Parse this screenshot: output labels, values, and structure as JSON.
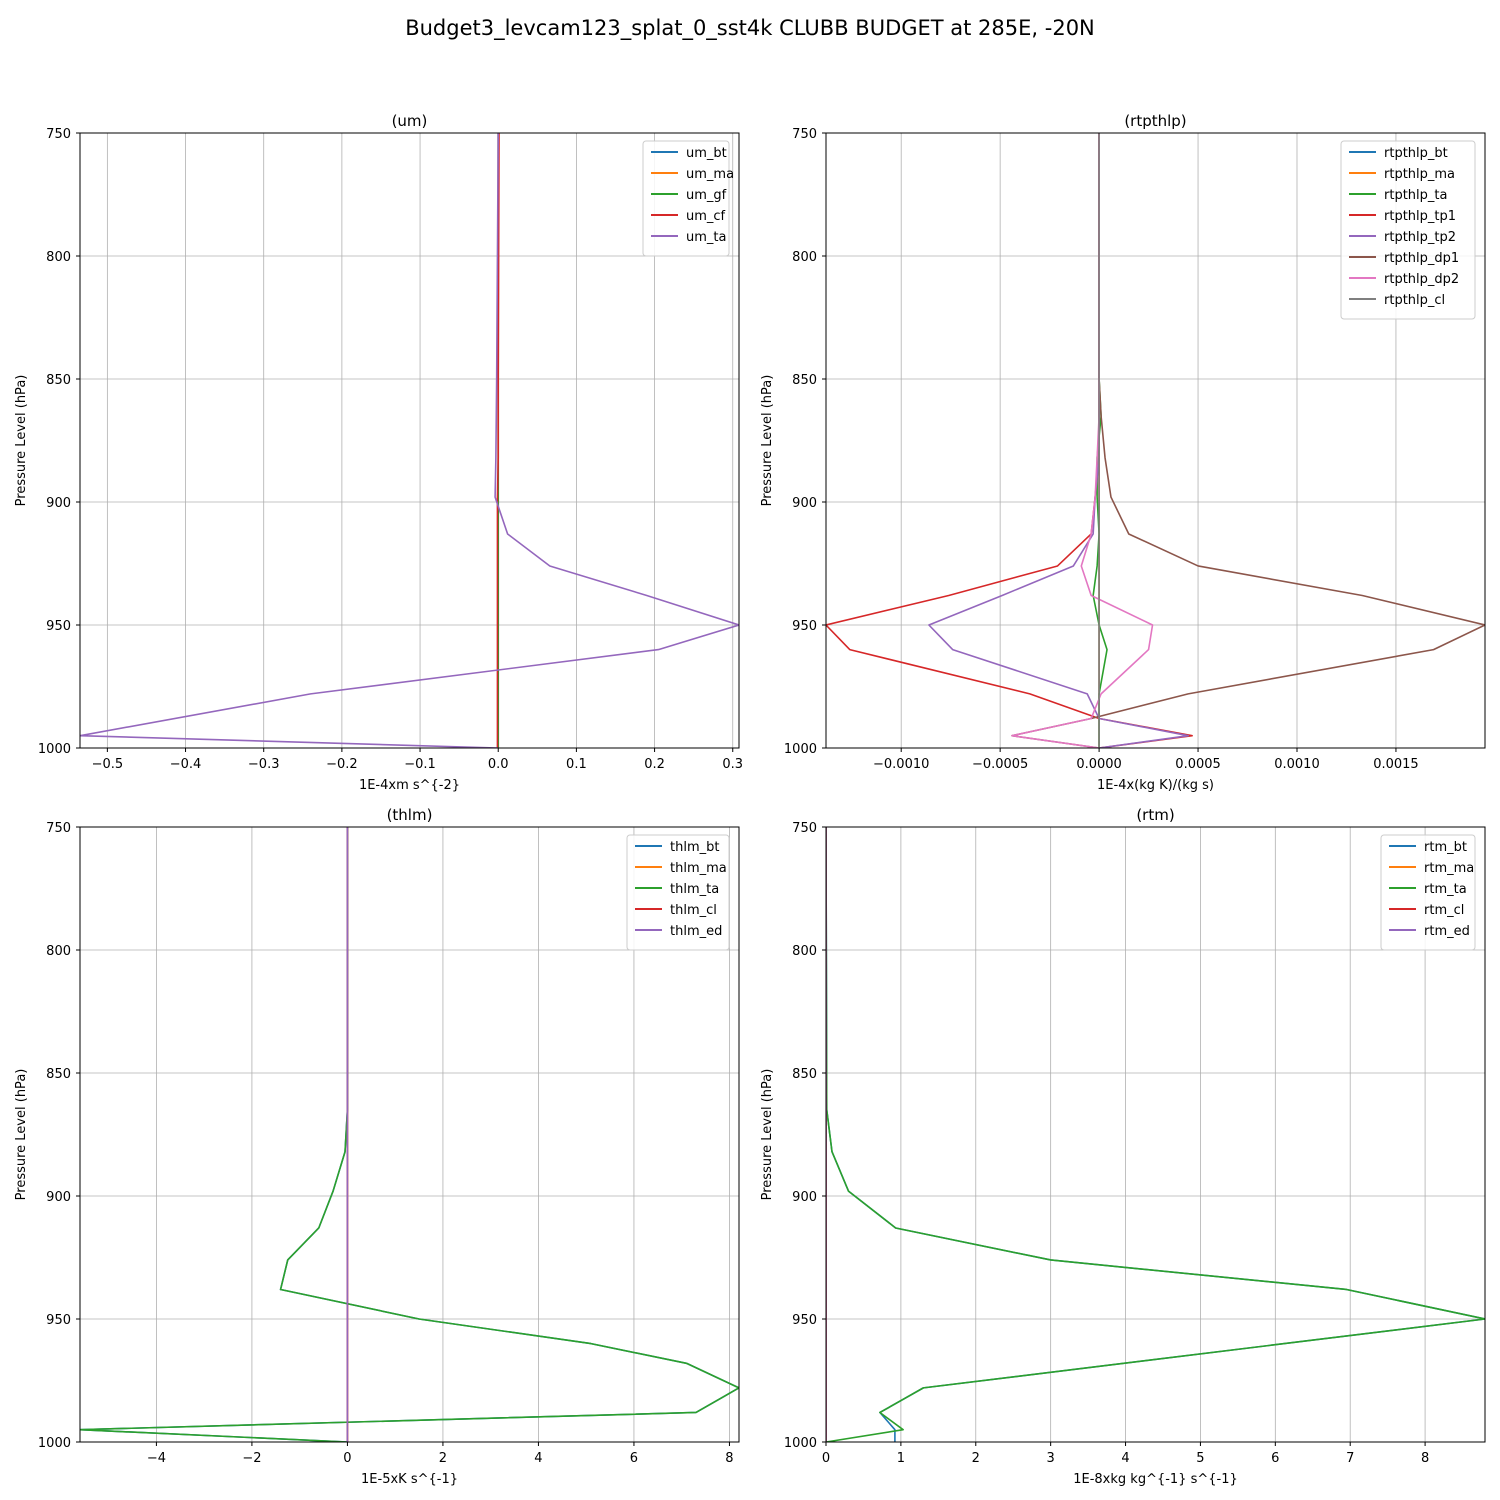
{
  "figure": {
    "title": "Budget3_levcam123_splat_0_sst4k CLUBB BUDGET at 285E, -20N"
  },
  "chart_data": [
    {
      "type": "line",
      "title": "(um)",
      "xlabel": "1E-4xm s^{-2}",
      "ylabel": "Pressure Level (hPa)",
      "xlim": [
        -0.535,
        0.308
      ],
      "ylim": [
        1000,
        750
      ],
      "y_inverted": true,
      "grid": true,
      "legend_position": "top-right",
      "x_ticks": [
        -0.5,
        -0.4,
        -0.3,
        -0.2,
        -0.1,
        0.0,
        0.1,
        0.2,
        0.3
      ],
      "x_tick_labels": [
        "−0.5",
        "−0.4",
        "−0.3",
        "−0.2",
        "−0.1",
        "0.0",
        "0.1",
        "0.2",
        "0.3"
      ],
      "y_ticks": [
        750,
        800,
        850,
        900,
        950,
        1000
      ],
      "y_tick_labels": [
        "750",
        "800",
        "850",
        "900",
        "950",
        "1000"
      ],
      "series": [
        {
          "name": "um_bt",
          "color": "#1f77b4",
          "x": [
            0,
            0,
            0,
            0,
            0,
            0,
            0,
            0,
            0,
            0,
            0,
            0
          ],
          "y": [
            750,
            850,
            882,
            898,
            913,
            926,
            938,
            950,
            960,
            978,
            995,
            1000
          ]
        },
        {
          "name": "um_ma",
          "color": "#ff7f0e",
          "x": [
            0,
            0,
            0,
            0,
            0,
            0,
            0,
            0,
            0,
            0,
            0,
            0
          ],
          "y": [
            750,
            850,
            882,
            898,
            913,
            926,
            938,
            950,
            960,
            978,
            995,
            1000
          ]
        },
        {
          "name": "um_gf",
          "color": "#2ca02c",
          "x": [
            0,
            0,
            0,
            0,
            0,
            0,
            0,
            0,
            0,
            0,
            0,
            0
          ],
          "y": [
            750,
            850,
            882,
            898,
            913,
            926,
            938,
            950,
            960,
            978,
            995,
            1000
          ]
        },
        {
          "name": "um_cf",
          "color": "#d62728",
          "x": [
            0.001,
            0.0,
            0.0,
            -0.001,
            -0.001,
            -0.001,
            -0.001,
            -0.001,
            -0.001,
            -0.001,
            -0.001,
            -0.001
          ],
          "y": [
            750,
            850,
            882,
            898,
            913,
            926,
            938,
            950,
            960,
            978,
            995,
            1000
          ]
        },
        {
          "name": "um_ta",
          "color": "#9467bd",
          "x": [
            0.0,
            -0.002,
            -0.003,
            -0.004,
            0.012,
            0.066,
            0.19,
            0.308,
            0.205,
            -0.24,
            -0.535,
            0.0
          ],
          "y": [
            750,
            850,
            882,
            898,
            913,
            926,
            938,
            950,
            960,
            978,
            995,
            1000
          ]
        }
      ]
    },
    {
      "type": "line",
      "title": "(rtpthlp)",
      "xlabel": "1E-4x(kg K)/(kg s)",
      "ylabel": "Pressure Level (hPa)",
      "xlim": [
        -0.00138,
        0.00195
      ],
      "ylim": [
        1000,
        750
      ],
      "y_inverted": true,
      "grid": true,
      "legend_position": "top-right",
      "x_ticks": [
        -0.001,
        -0.0005,
        0.0,
        0.0005,
        0.001,
        0.0015
      ],
      "x_tick_labels": [
        "−0.0010",
        "−0.0005",
        "0.0000",
        "0.0005",
        "0.0010",
        "0.0015"
      ],
      "y_ticks": [
        750,
        800,
        850,
        900,
        950,
        1000
      ],
      "y_tick_labels": [
        "750",
        "800",
        "850",
        "900",
        "950",
        "1000"
      ],
      "series": [
        {
          "name": "rtpthlp_bt",
          "color": "#1f77b4",
          "x": [
            0,
            0,
            0,
            0,
            0,
            0,
            0,
            0,
            0,
            0,
            0,
            0,
            0,
            0
          ],
          "y": [
            750,
            850,
            865,
            882,
            898,
            913,
            926,
            938,
            950,
            960,
            978,
            988,
            995,
            1000
          ]
        },
        {
          "name": "rtpthlp_ma",
          "color": "#ff7f0e",
          "x": [
            0,
            0,
            0,
            0,
            0,
            0,
            0,
            0,
            0,
            0,
            0,
            0,
            0,
            0
          ],
          "y": [
            750,
            850,
            865,
            882,
            898,
            913,
            926,
            938,
            950,
            960,
            978,
            988,
            995,
            1000
          ]
        },
        {
          "name": "rtpthlp_ta",
          "color": "#2ca02c",
          "x": [
            0,
            0,
            1e-05,
            -1e-05,
            -1e-05,
            0.0,
            -1e-05,
            -3e-05,
            0.0,
            4e-05,
            0.0,
            0.0,
            0.0,
            0.0
          ],
          "y": [
            750,
            850,
            865,
            882,
            898,
            913,
            926,
            938,
            950,
            960,
            978,
            988,
            995,
            1000
          ]
        },
        {
          "name": "rtpthlp_tp1",
          "color": "#d62728",
          "x": [
            0,
            0,
            0.0,
            0.0,
            -2e-05,
            -4e-05,
            -0.00021,
            -0.00076,
            -0.00138,
            -0.00126,
            -0.00035,
            0.0,
            0.00047,
            0.0
          ],
          "y": [
            750,
            850,
            865,
            882,
            898,
            913,
            926,
            938,
            950,
            960,
            978,
            988,
            995,
            1000
          ]
        },
        {
          "name": "rtpthlp_tp2",
          "color": "#9467bd",
          "x": [
            0,
            0,
            0.0,
            0.0,
            -2e-05,
            -3e-05,
            -0.00013,
            -0.00049,
            -0.00086,
            -0.00074,
            -6e-05,
            0.0,
            0.00045,
            0.0
          ],
          "y": [
            750,
            850,
            865,
            882,
            898,
            913,
            926,
            938,
            950,
            960,
            978,
            988,
            995,
            1000
          ]
        },
        {
          "name": "rtpthlp_dp1",
          "color": "#8c564b",
          "x": [
            0,
            0,
            1e-05,
            3e-05,
            6e-05,
            0.00015,
            0.0005,
            0.00133,
            0.00195,
            0.00169,
            0.00045,
            -4e-05,
            -0.00044,
            0.0
          ],
          "y": [
            750,
            850,
            865,
            882,
            898,
            913,
            926,
            938,
            950,
            960,
            978,
            988,
            995,
            1000
          ]
        },
        {
          "name": "rtpthlp_dp2",
          "color": "#e377c2",
          "x": [
            0,
            0,
            0.0,
            -1e-05,
            -2e-05,
            -4e-05,
            -9e-05,
            -4e-05,
            0.00027,
            0.00025,
            1e-05,
            -4e-05,
            -0.00044,
            0.0
          ],
          "y": [
            750,
            850,
            865,
            882,
            898,
            913,
            926,
            938,
            950,
            960,
            978,
            988,
            995,
            1000
          ]
        },
        {
          "name": "rtpthlp_cl",
          "color": "#7f7f7f",
          "x": [
            0,
            0,
            0,
            0,
            0,
            0,
            0,
            0,
            0,
            0,
            0,
            0,
            0,
            0
          ],
          "y": [
            750,
            850,
            865,
            882,
            898,
            913,
            926,
            938,
            950,
            960,
            978,
            988,
            995,
            1000
          ]
        }
      ]
    },
    {
      "type": "line",
      "title": "(thlm)",
      "xlabel": "1E-5xK s^{-1}",
      "ylabel": "Pressure Level (hPa)",
      "xlim": [
        -5.6,
        8.2
      ],
      "ylim": [
        1000,
        750
      ],
      "y_inverted": true,
      "grid": true,
      "legend_position": "top-right",
      "x_ticks": [
        -4,
        -2,
        0,
        2,
        4,
        6,
        8
      ],
      "x_tick_labels": [
        "−4",
        "−2",
        "0",
        "2",
        "4",
        "6",
        "8"
      ],
      "y_ticks": [
        750,
        800,
        850,
        900,
        950,
        1000
      ],
      "y_tick_labels": [
        "750",
        "800",
        "850",
        "900",
        "950",
        "1000"
      ],
      "series": [
        {
          "name": "thlm_bt",
          "color": "#1f77b4",
          "x": [
            0,
            0,
            -0.05,
            -0.3,
            -0.6,
            -1.25,
            -1.4,
            1.5,
            5.1,
            7.1,
            8.2,
            7.3,
            -5.6,
            0.0
          ],
          "y": [
            750,
            865,
            882,
            898,
            913,
            926,
            938,
            950,
            960,
            968,
            978,
            988,
            995,
            1000
          ]
        },
        {
          "name": "thlm_ma",
          "color": "#ff7f0e",
          "x": [
            0,
            0,
            0,
            0,
            0,
            0,
            0,
            0,
            0,
            0,
            0,
            0,
            0,
            0
          ],
          "y": [
            750,
            865,
            882,
            898,
            913,
            926,
            938,
            950,
            960,
            968,
            978,
            988,
            995,
            1000
          ]
        },
        {
          "name": "thlm_ta",
          "color": "#2ca02c",
          "x": [
            0,
            0,
            -0.05,
            -0.3,
            -0.6,
            -1.25,
            -1.4,
            1.5,
            5.1,
            7.1,
            8.2,
            7.3,
            -5.6,
            0.0
          ],
          "y": [
            750,
            865,
            882,
            898,
            913,
            926,
            938,
            950,
            960,
            968,
            978,
            988,
            995,
            1000
          ]
        },
        {
          "name": "thlm_cl",
          "color": "#d62728",
          "x": [
            0,
            0,
            0,
            0,
            0,
            0,
            0,
            0,
            0,
            0,
            0,
            0,
            0,
            0
          ],
          "y": [
            750,
            865,
            882,
            898,
            913,
            926,
            938,
            950,
            960,
            968,
            978,
            988,
            995,
            1000
          ]
        },
        {
          "name": "thlm_ed",
          "color": "#9467bd",
          "x": [
            0,
            0,
            0,
            0,
            0,
            0,
            0,
            0,
            0,
            0,
            0,
            0,
            0,
            0
          ],
          "y": [
            750,
            865,
            882,
            898,
            913,
            926,
            938,
            950,
            960,
            968,
            978,
            988,
            995,
            1000
          ]
        }
      ]
    },
    {
      "type": "line",
      "title": "(rtm)",
      "xlabel": "1E-8xkg kg^{-1} s^{-1}",
      "ylabel": "Pressure Level (hPa)",
      "xlim": [
        0,
        8.8
      ],
      "ylim": [
        1000,
        750
      ],
      "y_inverted": true,
      "grid": true,
      "legend_position": "top-right",
      "x_ticks": [
        0,
        1,
        2,
        3,
        4,
        5,
        6,
        7,
        8
      ],
      "x_tick_labels": [
        "0",
        "1",
        "2",
        "3",
        "4",
        "5",
        "6",
        "7",
        "8"
      ],
      "y_ticks": [
        750,
        800,
        850,
        900,
        950,
        1000
      ],
      "y_tick_labels": [
        "750",
        "800",
        "850",
        "900",
        "950",
        "1000"
      ],
      "series": [
        {
          "name": "rtm_bt",
          "color": "#1f77b4",
          "x": [
            0,
            0.01,
            0.08,
            0.3,
            0.93,
            3.0,
            6.95,
            8.8,
            1.3,
            0.72,
            0.92,
            0.92
          ],
          "y": [
            750,
            865,
            882,
            898,
            913,
            926,
            938,
            950,
            978,
            988,
            995,
            1000
          ]
        },
        {
          "name": "rtm_ma",
          "color": "#ff7f0e",
          "x": [
            0,
            0,
            0,
            0,
            0,
            0,
            0,
            0,
            0,
            0,
            0,
            0
          ],
          "y": [
            750,
            865,
            882,
            898,
            913,
            926,
            938,
            950,
            978,
            988,
            995,
            1000
          ]
        },
        {
          "name": "rtm_ta",
          "color": "#2ca02c",
          "x": [
            0,
            0.01,
            0.08,
            0.3,
            0.93,
            3.0,
            6.95,
            8.8,
            1.3,
            0.72,
            1.03,
            0.0
          ],
          "y": [
            750,
            865,
            882,
            898,
            913,
            926,
            938,
            950,
            978,
            988,
            995,
            1000
          ]
        },
        {
          "name": "rtm_cl",
          "color": "#d62728",
          "x": [
            0,
            0,
            0,
            0,
            0,
            0,
            0,
            0,
            0,
            0,
            0,
            0
          ],
          "y": [
            750,
            865,
            882,
            898,
            913,
            926,
            938,
            950,
            978,
            988,
            995,
            1000
          ]
        },
        {
          "name": "rtm_ed",
          "color": "#9467bd",
          "x": [
            0,
            0,
            0,
            0,
            0,
            0,
            0,
            0,
            0,
            0,
            0,
            0
          ],
          "y": [
            750,
            865,
            882,
            898,
            913,
            926,
            938,
            950,
            978,
            988,
            995,
            1000
          ]
        }
      ]
    }
  ]
}
